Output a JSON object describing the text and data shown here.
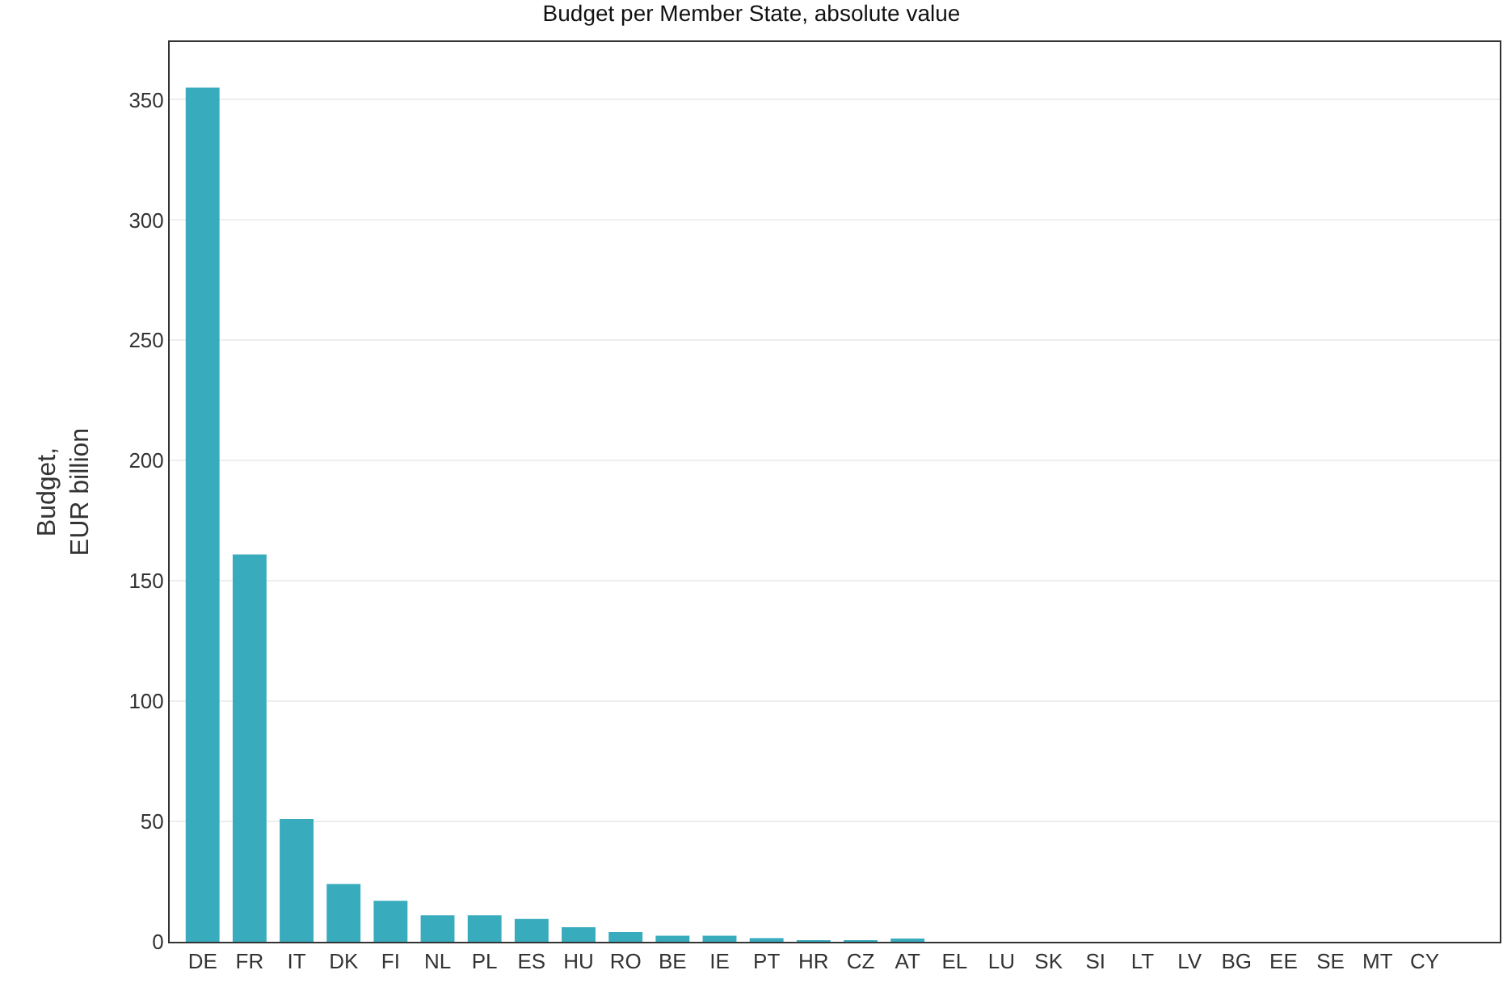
{
  "chart_data": {
    "type": "bar",
    "title": "Budget per Member State, absolute value",
    "ylabel": "Budget,\nEUR billion",
    "categories": [
      "DE",
      "FR",
      "IT",
      "DK",
      "FI",
      "NL",
      "PL",
      "ES",
      "HU",
      "RO",
      "BE",
      "IE",
      "PT",
      "HR",
      "CZ",
      "AT",
      "EL",
      "LU",
      "SK",
      "SI",
      "LT",
      "LV",
      "BG",
      "EE",
      "SE",
      "MT",
      "CY"
    ],
    "values": [
      355,
      161,
      51,
      24,
      17,
      11,
      11,
      9.5,
      6,
      4,
      2.5,
      2.5,
      1.5,
      0.5,
      0.5,
      0.8,
      0,
      0,
      0,
      0,
      0,
      0,
      0,
      0,
      0,
      0,
      0
    ],
    "color": "#38abbd",
    "ylim": [
      0,
      374
    ],
    "yticks": [
      0,
      50,
      100,
      150,
      200,
      250,
      300,
      350
    ],
    "grid": "y"
  }
}
